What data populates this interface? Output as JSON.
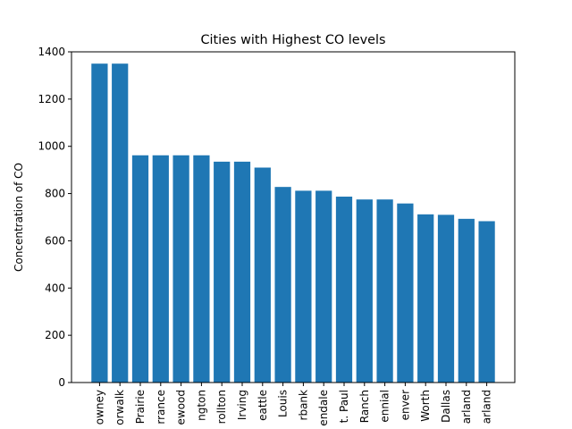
{
  "chart_data": {
    "type": "bar",
    "title": "Cities with Highest CO levels",
    "xlabel": "",
    "ylabel": "Concentration of CO",
    "ylim": [
      0,
      1400
    ],
    "yticks": [
      0,
      200,
      400,
      600,
      800,
      1000,
      1200,
      1400
    ],
    "grid": false,
    "bar_color": "#1f77b4",
    "categories": [
      "owney",
      "orwalk",
      "Prairie",
      "rrance",
      "ewood",
      "ngton",
      "rollton",
      "Irving",
      "eattle",
      "Louis",
      "rbank",
      "endale",
      "t. Paul",
      "Ranch",
      "ennial",
      "enver",
      "Worth",
      "Dallas",
      "arland",
      "arland"
    ],
    "values": [
      1350,
      1350,
      962,
      962,
      962,
      962,
      935,
      935,
      910,
      828,
      812,
      812,
      787,
      775,
      775,
      758,
      712,
      710,
      693,
      683
    ]
  }
}
